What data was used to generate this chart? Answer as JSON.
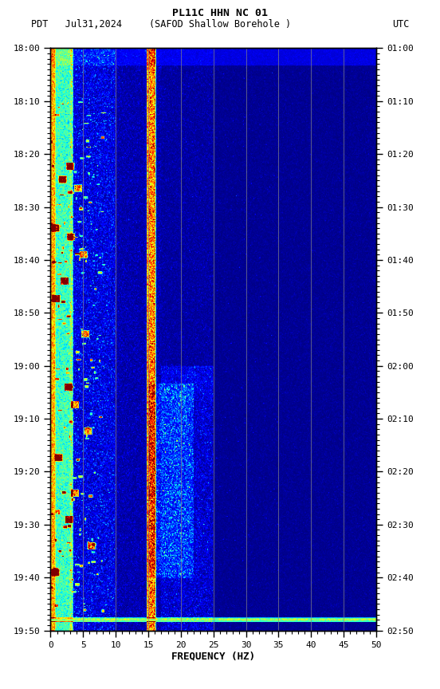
{
  "title_line1": "PL11C HHN NC 01",
  "title_line2_left": "PDT   Jul31,2024",
  "title_line2_mid": "(SAFOD Shallow Borehole )",
  "title_line2_right": "UTC",
  "xlabel": "FREQUENCY (HZ)",
  "freq_min": 0,
  "freq_max": 50,
  "ytick_labels_left": [
    "18:00",
    "18:10",
    "18:20",
    "18:30",
    "18:40",
    "18:50",
    "19:00",
    "19:10",
    "19:20",
    "19:30",
    "19:40",
    "19:50"
  ],
  "ytick_labels_right": [
    "01:00",
    "01:10",
    "01:20",
    "01:30",
    "01:40",
    "01:50",
    "02:00",
    "02:10",
    "02:20",
    "02:30",
    "02:40",
    "02:50"
  ],
  "freq_ticks": [
    0,
    5,
    10,
    15,
    20,
    25,
    30,
    35,
    40,
    45,
    50
  ],
  "grid_freqs": [
    5,
    10,
    15,
    20,
    25,
    30,
    35,
    40,
    45
  ],
  "fig_bg": "#ffffff"
}
